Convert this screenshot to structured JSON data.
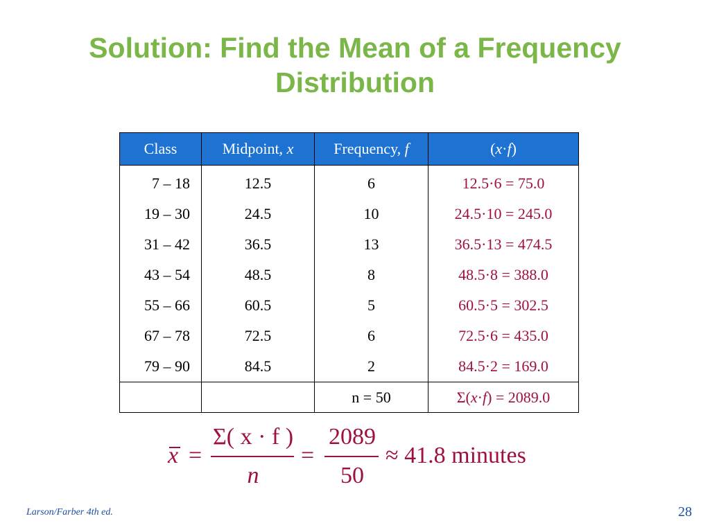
{
  "slide": {
    "title_line1": "Solution: Find the Mean of a Frequency",
    "title_line2": "Distribution",
    "footer_left": "Larson/Farber 4th ed.",
    "page_number": "28"
  },
  "table": {
    "headers": [
      "Class",
      "Midpoint, ",
      "x",
      "Frequency, ",
      "f",
      "(x·f)"
    ],
    "header_labels": {
      "class": "Class",
      "midpoint_text": "Midpoint, ",
      "midpoint_var": "x",
      "frequency_text": "Frequency, ",
      "frequency_var": "f",
      "product_open": "(",
      "product_x": "x",
      "product_dot": "·",
      "product_f": "f",
      "product_close": ")"
    },
    "rows": [
      {
        "class": "7 – 18",
        "midpoint": "12.5",
        "frequency": "6",
        "product": "12.5·6 = 75.0"
      },
      {
        "class": "19 – 30",
        "midpoint": "24.5",
        "frequency": "10",
        "product": "24.5·10 = 245.0"
      },
      {
        "class": "31 – 42",
        "midpoint": "36.5",
        "frequency": "13",
        "product": "36.5·13 = 474.5"
      },
      {
        "class": "43 – 54",
        "midpoint": "48.5",
        "frequency": "8",
        "product": "48.5·8 = 388.0"
      },
      {
        "class": "55 – 66",
        "midpoint": "60.5",
        "frequency": "5",
        "product": "60.5·5 = 302.5"
      },
      {
        "class": "67 – 78",
        "midpoint": "72.5",
        "frequency": "6",
        "product": "72.5·6 = 435.0"
      },
      {
        "class": "79 – 90",
        "midpoint": "84.5",
        "frequency": "2",
        "product": "84.5·2 = 169.0"
      }
    ],
    "total": {
      "n": "n = 50",
      "sum_prefix": "Σ(",
      "sum_x": "x",
      "sum_dot": "·",
      "sum_f": "f",
      "sum_suffix": ") = 2089.0"
    }
  },
  "formula": {
    "xbar": "x",
    "equals1": "=",
    "numerator1": "Σ( x · f )",
    "denominator1": "n",
    "equals2": "=",
    "numerator2": "2089",
    "denominator2": "50",
    "result": "≈ 41.8 minutes"
  },
  "colors": {
    "title": "#7ab648",
    "header_bg": "#1e73d2",
    "product_text": "#a0103c",
    "footer": "#1a4fa0"
  }
}
